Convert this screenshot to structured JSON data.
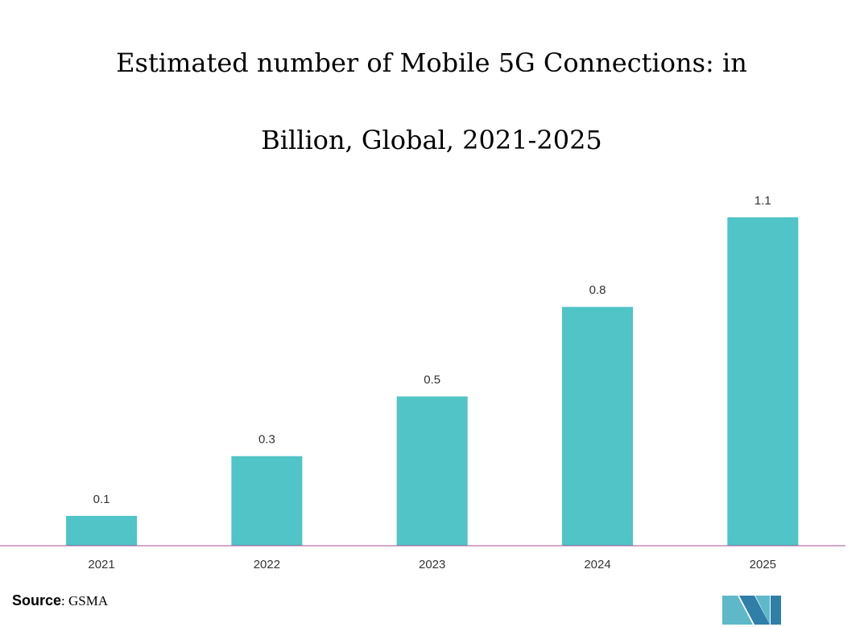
{
  "chart_data": {
    "type": "bar",
    "title": "Estimated number of Mobile 5G Connections: in Billion, Global, 2021-2025",
    "categories": [
      "2021",
      "2022",
      "2023",
      "2024",
      "2025"
    ],
    "values": [
      0.1,
      0.3,
      0.5,
      0.8,
      1.1
    ],
    "color": "#50c4c6",
    "ylim": [
      0,
      1.1
    ],
    "source": {
      "label": "Source",
      "text": ": GSMA"
    }
  }
}
